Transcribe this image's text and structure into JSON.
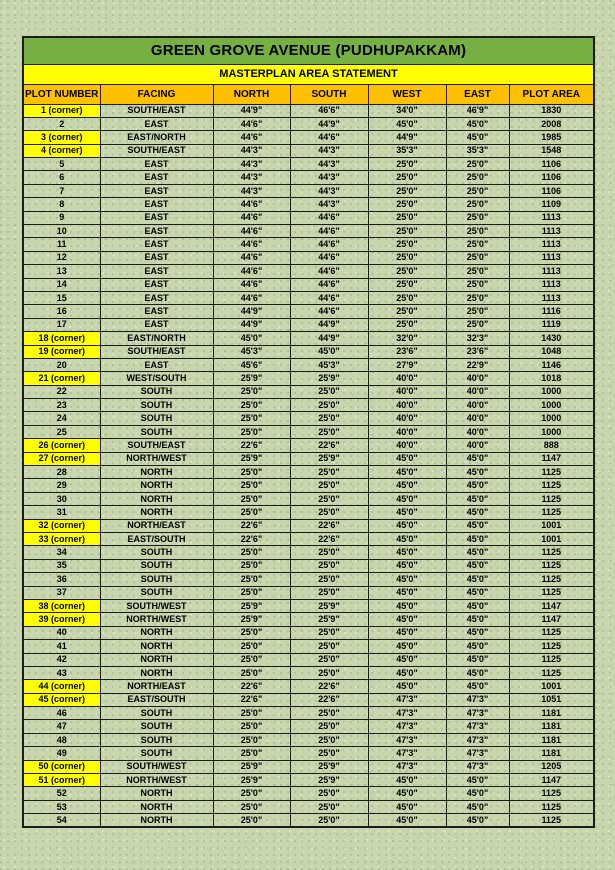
{
  "title": "GREEN GROVE AVENUE (PUDHUPAKKAM)",
  "subtitle": "MASTERPLAN AREA STATEMENT",
  "colors": {
    "page_bg": "#c8d6ae",
    "title_bg": "#76b043",
    "subtitle_bg": "#ffff00",
    "header_bg": "#ffc000",
    "corner_bg": "#ffff00",
    "border": "#1c1c1c",
    "text": "#000000"
  },
  "table": {
    "headers": [
      "PLOT NUMBER",
      "FACING",
      "NORTH",
      "SOUTH",
      "WEST",
      "EAST",
      "PLOT AREA"
    ],
    "rows": [
      {
        "corner": true,
        "cells": [
          "1 (corner)",
          "SOUTH/EAST",
          "44'9\"",
          "46'6\"",
          "34'0\"",
          "46'9\"",
          "1830"
        ]
      },
      {
        "corner": false,
        "cells": [
          "2",
          "EAST",
          "44'6\"",
          "44'9\"",
          "45'0\"",
          "45'0\"",
          "2008"
        ]
      },
      {
        "corner": true,
        "cells": [
          "3 (corner)",
          "EAST/NORTH",
          "44'6\"",
          "44'6\"",
          "44'9\"",
          "45'0\"",
          "1985"
        ]
      },
      {
        "corner": true,
        "cells": [
          "4 (corner)",
          "SOUTH/EAST",
          "44'3\"",
          "44'3\"",
          "35'3\"",
          "35'3\"",
          "1548"
        ]
      },
      {
        "corner": false,
        "cells": [
          "5",
          "EAST",
          "44'3\"",
          "44'3\"",
          "25'0\"",
          "25'0\"",
          "1106"
        ]
      },
      {
        "corner": false,
        "cells": [
          "6",
          "EAST",
          "44'3\"",
          "44'3\"",
          "25'0\"",
          "25'0\"",
          "1106"
        ]
      },
      {
        "corner": false,
        "cells": [
          "7",
          "EAST",
          "44'3\"",
          "44'3\"",
          "25'0\"",
          "25'0\"",
          "1106"
        ]
      },
      {
        "corner": false,
        "cells": [
          "8",
          "EAST",
          "44'6\"",
          "44'3\"",
          "25'0\"",
          "25'0\"",
          "1109"
        ]
      },
      {
        "corner": false,
        "cells": [
          "9",
          "EAST",
          "44'6\"",
          "44'6\"",
          "25'0\"",
          "25'0\"",
          "1113"
        ]
      },
      {
        "corner": false,
        "cells": [
          "10",
          "EAST",
          "44'6\"",
          "44'6\"",
          "25'0\"",
          "25'0\"",
          "1113"
        ]
      },
      {
        "corner": false,
        "cells": [
          "11",
          "EAST",
          "44'6\"",
          "44'6\"",
          "25'0\"",
          "25'0\"",
          "1113"
        ]
      },
      {
        "corner": false,
        "cells": [
          "12",
          "EAST",
          "44'6\"",
          "44'6\"",
          "25'0\"",
          "25'0\"",
          "1113"
        ]
      },
      {
        "corner": false,
        "cells": [
          "13",
          "EAST",
          "44'6\"",
          "44'6\"",
          "25'0\"",
          "25'0\"",
          "1113"
        ]
      },
      {
        "corner": false,
        "cells": [
          "14",
          "EAST",
          "44'6\"",
          "44'6\"",
          "25'0\"",
          "25'0\"",
          "1113"
        ]
      },
      {
        "corner": false,
        "cells": [
          "15",
          "EAST",
          "44'6\"",
          "44'6\"",
          "25'0\"",
          "25'0\"",
          "1113"
        ]
      },
      {
        "corner": false,
        "cells": [
          "16",
          "EAST",
          "44'9\"",
          "44'6\"",
          "25'0\"",
          "25'0\"",
          "1116"
        ]
      },
      {
        "corner": false,
        "cells": [
          "17",
          "EAST",
          "44'9\"",
          "44'9\"",
          "25'0\"",
          "25'0\"",
          "1119"
        ]
      },
      {
        "corner": true,
        "cells": [
          "18 (corner)",
          "EAST/NORTH",
          "45'0\"",
          "44'9\"",
          "32'0\"",
          "32'3\"",
          "1430"
        ]
      },
      {
        "corner": true,
        "cells": [
          "19 (corner)",
          "SOUTH/EAST",
          "45'3\"",
          "45'0\"",
          "23'6\"",
          "23'6\"",
          "1048"
        ]
      },
      {
        "corner": false,
        "cells": [
          "20",
          "EAST",
          "45'6\"",
          "45'3\"",
          "27'9\"",
          "22'9\"",
          "1146"
        ]
      },
      {
        "corner": true,
        "cells": [
          "21 (corner)",
          "WEST/SOUTH",
          "25'9\"",
          "25'9\"",
          "40'0\"",
          "40'0\"",
          "1018"
        ]
      },
      {
        "corner": false,
        "cells": [
          "22",
          "SOUTH",
          "25'0\"",
          "25'0\"",
          "40'0\"",
          "40'0\"",
          "1000"
        ]
      },
      {
        "corner": false,
        "cells": [
          "23",
          "SOUTH",
          "25'0\"",
          "25'0\"",
          "40'0\"",
          "40'0\"",
          "1000"
        ]
      },
      {
        "corner": false,
        "cells": [
          "24",
          "SOUTH",
          "25'0\"",
          "25'0\"",
          "40'0\"",
          "40'0\"",
          "1000"
        ]
      },
      {
        "corner": false,
        "cells": [
          "25",
          "SOUTH",
          "25'0\"",
          "25'0\"",
          "40'0\"",
          "40'0\"",
          "1000"
        ]
      },
      {
        "corner": true,
        "cells": [
          "26 (corner)",
          "SOUTH/EAST",
          "22'6\"",
          "22'6\"",
          "40'0\"",
          "40'0\"",
          "888"
        ]
      },
      {
        "corner": true,
        "cells": [
          "27 (corner)",
          "NORTH/WEST",
          "25'9\"",
          "25'9\"",
          "45'0\"",
          "45'0\"",
          "1147"
        ]
      },
      {
        "corner": false,
        "cells": [
          "28",
          "NORTH",
          "25'0\"",
          "25'0\"",
          "45'0\"",
          "45'0\"",
          "1125"
        ]
      },
      {
        "corner": false,
        "cells": [
          "29",
          "NORTH",
          "25'0\"",
          "25'0\"",
          "45'0\"",
          "45'0\"",
          "1125"
        ]
      },
      {
        "corner": false,
        "cells": [
          "30",
          "NORTH",
          "25'0\"",
          "25'0\"",
          "45'0\"",
          "45'0\"",
          "1125"
        ]
      },
      {
        "corner": false,
        "cells": [
          "31",
          "NORTH",
          "25'0\"",
          "25'0\"",
          "45'0\"",
          "45'0\"",
          "1125"
        ]
      },
      {
        "corner": true,
        "cells": [
          "32 (corner)",
          "NORTH/EAST",
          "22'6\"",
          "22'6\"",
          "45'0\"",
          "45'0\"",
          "1001"
        ]
      },
      {
        "corner": true,
        "cells": [
          "33 (corner)",
          "EAST/SOUTH",
          "22'6\"",
          "22'6\"",
          "45'0\"",
          "45'0\"",
          "1001"
        ]
      },
      {
        "corner": false,
        "cells": [
          "34",
          "SOUTH",
          "25'0\"",
          "25'0\"",
          "45'0\"",
          "45'0\"",
          "1125"
        ]
      },
      {
        "corner": false,
        "cells": [
          "35",
          "SOUTH",
          "25'0\"",
          "25'0\"",
          "45'0\"",
          "45'0\"",
          "1125"
        ]
      },
      {
        "corner": false,
        "cells": [
          "36",
          "SOUTH",
          "25'0\"",
          "25'0\"",
          "45'0\"",
          "45'0\"",
          "1125"
        ]
      },
      {
        "corner": false,
        "cells": [
          "37",
          "SOUTH",
          "25'0\"",
          "25'0\"",
          "45'0\"",
          "45'0\"",
          "1125"
        ]
      },
      {
        "corner": true,
        "cells": [
          "38 (corner)",
          "SOUTH/WEST",
          "25'9\"",
          "25'9\"",
          "45'0\"",
          "45'0\"",
          "1147"
        ]
      },
      {
        "corner": true,
        "cells": [
          "39 (corner)",
          "NORTH/WEST",
          "25'9\"",
          "25'9\"",
          "45'0\"",
          "45'0\"",
          "1147"
        ]
      },
      {
        "corner": false,
        "cells": [
          "40",
          "NORTH",
          "25'0\"",
          "25'0\"",
          "45'0\"",
          "45'0\"",
          "1125"
        ]
      },
      {
        "corner": false,
        "cells": [
          "41",
          "NORTH",
          "25'0\"",
          "25'0\"",
          "45'0\"",
          "45'0\"",
          "1125"
        ]
      },
      {
        "corner": false,
        "cells": [
          "42",
          "NORTH",
          "25'0\"",
          "25'0\"",
          "45'0\"",
          "45'0\"",
          "1125"
        ]
      },
      {
        "corner": false,
        "cells": [
          "43",
          "NORTH",
          "25'0\"",
          "25'0\"",
          "45'0\"",
          "45'0\"",
          "1125"
        ]
      },
      {
        "corner": true,
        "cells": [
          "44 (corner)",
          "NORTH/EAST",
          "22'6\"",
          "22'6\"",
          "45'0\"",
          "45'0\"",
          "1001"
        ]
      },
      {
        "corner": true,
        "cells": [
          "45 (corner)",
          "EAST/SOUTH",
          "22'6\"",
          "22'6\"",
          "47'3\"",
          "47'3\"",
          "1051"
        ]
      },
      {
        "corner": false,
        "cells": [
          "46",
          "SOUTH",
          "25'0\"",
          "25'0\"",
          "47'3\"",
          "47'3\"",
          "1181"
        ]
      },
      {
        "corner": false,
        "cells": [
          "47",
          "SOUTH",
          "25'0\"",
          "25'0\"",
          "47'3\"",
          "47'3\"",
          "1181"
        ]
      },
      {
        "corner": false,
        "cells": [
          "48",
          "SOUTH",
          "25'0\"",
          "25'0\"",
          "47'3\"",
          "47'3\"",
          "1181"
        ]
      },
      {
        "corner": false,
        "cells": [
          "49",
          "SOUTH",
          "25'0\"",
          "25'0\"",
          "47'3\"",
          "47'3\"",
          "1181"
        ]
      },
      {
        "corner": true,
        "cells": [
          "50 (corner)",
          "SOUTH/WEST",
          "25'9\"",
          "25'9\"",
          "47'3\"",
          "47'3\"",
          "1205"
        ]
      },
      {
        "corner": true,
        "cells": [
          "51 (corner)",
          "NORTH/WEST",
          "25'9\"",
          "25'9\"",
          "45'0\"",
          "45'0\"",
          "1147"
        ]
      },
      {
        "corner": false,
        "cells": [
          "52",
          "NORTH",
          "25'0\"",
          "25'0\"",
          "45'0\"",
          "45'0\"",
          "1125"
        ]
      },
      {
        "corner": false,
        "cells": [
          "53",
          "NORTH",
          "25'0\"",
          "25'0\"",
          "45'0\"",
          "45'0\"",
          "1125"
        ]
      },
      {
        "corner": false,
        "cells": [
          "54",
          "NORTH",
          "25'0\"",
          "25'0\"",
          "45'0\"",
          "45'0\"",
          "1125"
        ]
      }
    ]
  }
}
